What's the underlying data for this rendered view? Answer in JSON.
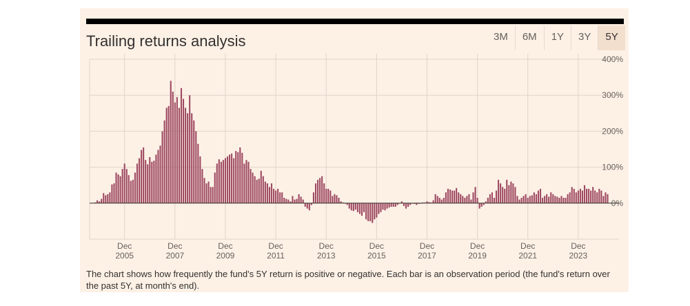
{
  "header": {
    "title": "Trailing returns analysis"
  },
  "tabs": [
    {
      "label": "3M",
      "active": false
    },
    {
      "label": "6M",
      "active": false
    },
    {
      "label": "1Y",
      "active": false
    },
    {
      "label": "3Y",
      "active": false
    },
    {
      "label": "5Y",
      "active": true
    }
  ],
  "caption": "The chart shows how frequently the fund's 5Y return is positive or negative. Each bar is an observation period (the fund's return over the past 5Y, at month's end).",
  "colors": {
    "panel_bg": "#fdf1e6",
    "bar": "#9e4a62",
    "grid": "#e0d3c8",
    "axis_text": "#66605c"
  },
  "chart_data": {
    "type": "bar",
    "title": "Trailing returns analysis",
    "xlabel": "",
    "ylabel": "",
    "ylim": [
      -100,
      400
    ],
    "yticks": [
      "400%",
      "300%",
      "200%",
      "100%",
      "0%"
    ],
    "ytick_values": [
      400,
      300,
      200,
      100,
      0
    ],
    "xticks": [
      {
        "top": "Dec",
        "bottom": "2005",
        "index": 14
      },
      {
        "top": "Dec",
        "bottom": "2007",
        "index": 38
      },
      {
        "top": "Dec",
        "bottom": "2009",
        "index": 62
      },
      {
        "top": "Dec",
        "bottom": "2011",
        "index": 86
      },
      {
        "top": "Dec",
        "bottom": "2013",
        "index": 110
      },
      {
        "top": "Dec",
        "bottom": "2015",
        "index": 134
      },
      {
        "top": "Dec",
        "bottom": "2017",
        "index": 158
      },
      {
        "top": "Dec",
        "bottom": "2019",
        "index": 182
      },
      {
        "top": "Dec",
        "bottom": "2021",
        "index": 206
      },
      {
        "top": "Dec",
        "bottom": "2023",
        "index": 230
      }
    ],
    "start": "Oct 2004",
    "frequency": "monthly",
    "grid": true,
    "values": [
      2,
      8,
      5,
      12,
      28,
      22,
      25,
      30,
      52,
      55,
      85,
      80,
      75,
      95,
      110,
      95,
      78,
      62,
      65,
      85,
      110,
      125,
      148,
      155,
      120,
      108,
      128,
      115,
      118,
      135,
      148,
      160,
      200,
      230,
      265,
      270,
      340,
      310,
      280,
      295,
      265,
      320,
      290,
      265,
      250,
      300,
      250,
      230,
      200,
      165,
      130,
      95,
      70,
      55,
      60,
      45,
      45,
      85,
      110,
      122,
      115,
      120,
      125,
      130,
      135,
      138,
      125,
      145,
      142,
      155,
      140,
      110,
      120,
      115,
      95,
      85,
      75,
      65,
      68,
      90,
      75,
      60,
      55,
      45,
      55,
      40,
      35,
      40,
      30,
      30,
      15,
      12,
      10,
      5,
      20,
      10,
      12,
      25,
      18,
      10,
      -10,
      -15,
      -20,
      -5,
      30,
      55,
      65,
      70,
      75,
      55,
      40,
      40,
      35,
      20,
      25,
      22,
      15,
      5,
      2,
      0,
      -5,
      -15,
      -20,
      -22,
      -18,
      -25,
      -30,
      -35,
      -25,
      -45,
      -50,
      -50,
      -55,
      -45,
      -40,
      -30,
      -25,
      -18,
      -20,
      -15,
      -12,
      -10,
      -10,
      -10,
      -5,
      0,
      5,
      -8,
      -15,
      -10,
      -5,
      0,
      -2,
      -5,
      -2,
      0,
      2,
      2,
      5,
      3,
      2,
      8,
      25,
      20,
      15,
      10,
      15,
      30,
      40,
      38,
      35,
      35,
      42,
      30,
      25,
      20,
      15,
      20,
      25,
      10,
      30,
      45,
      15,
      -15,
      -10,
      -5,
      5,
      15,
      25,
      30,
      15,
      35,
      65,
      55,
      45,
      40,
      65,
      50,
      60,
      55,
      45,
      20,
      10,
      15,
      20,
      25,
      15,
      20,
      22,
      30,
      25,
      35,
      40,
      15,
      20,
      25,
      18,
      30,
      25,
      20,
      18,
      15,
      20,
      15,
      15,
      25,
      30,
      45,
      40,
      30,
      35,
      40,
      35,
      50,
      40,
      40,
      35,
      45,
      35,
      30,
      40,
      35,
      20,
      30,
      25
    ]
  }
}
